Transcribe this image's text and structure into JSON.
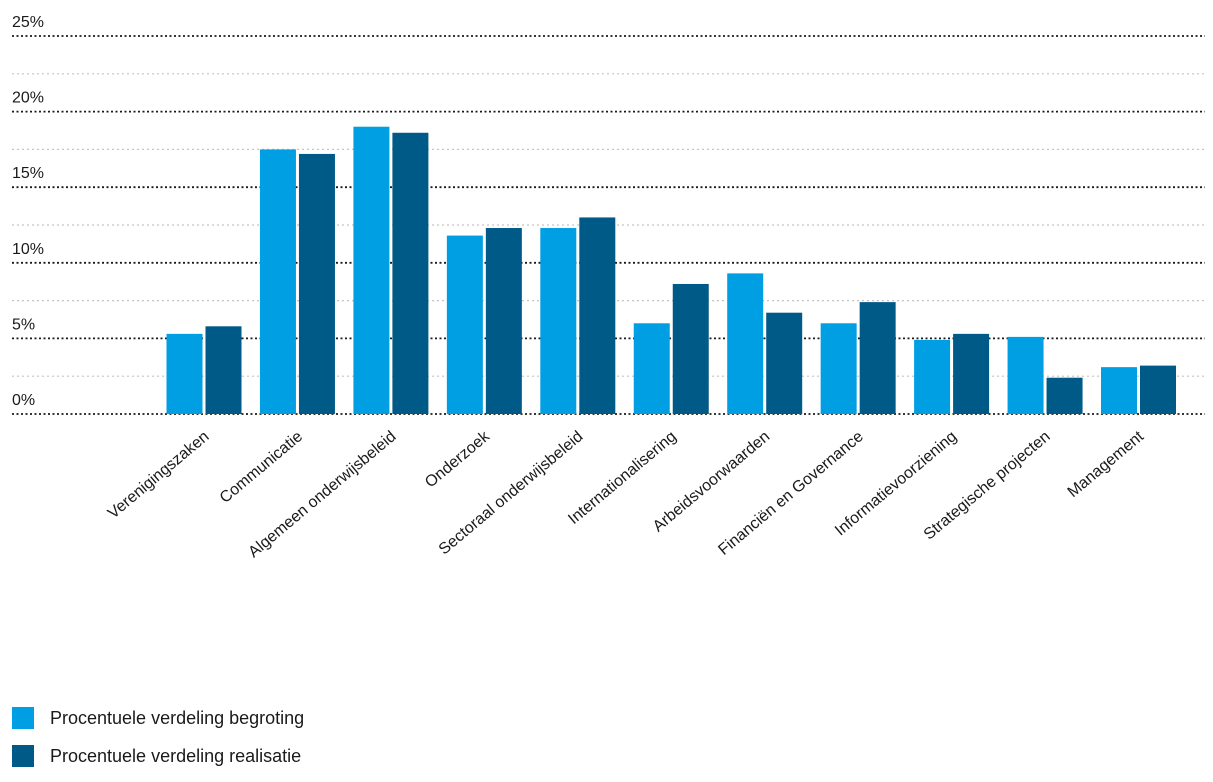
{
  "chart_data": {
    "type": "bar",
    "categories": [
      "Verenigingszaken",
      "Communicatie",
      "Algemeen onderwijsbeleid",
      "Onderzoek",
      "Sectoraal onderwijsbeleid",
      "Internationalisering",
      "Arbeidsvoorwaarden",
      "Financiën en Governance",
      "Informatievoorziening",
      "Strategische projecten",
      "Management"
    ],
    "series": [
      {
        "name": "Procentuele verdeling begroting",
        "color": "#009fe3",
        "values": [
          5.3,
          17.5,
          19.0,
          11.8,
          12.3,
          6.0,
          9.3,
          6.0,
          4.9,
          5.1,
          3.1
        ]
      },
      {
        "name": "Procentuele verdeling realisatie",
        "color": "#005a87",
        "values": [
          5.8,
          17.2,
          18.6,
          12.3,
          13.0,
          8.6,
          6.7,
          7.4,
          5.3,
          2.4,
          3.2
        ]
      }
    ],
    "yticks": [
      "0%",
      "5%",
      "10%",
      "15%",
      "20%",
      "25%"
    ],
    "ylim": [
      0,
      25
    ],
    "grid": true,
    "legend_position": "bottom-left"
  }
}
